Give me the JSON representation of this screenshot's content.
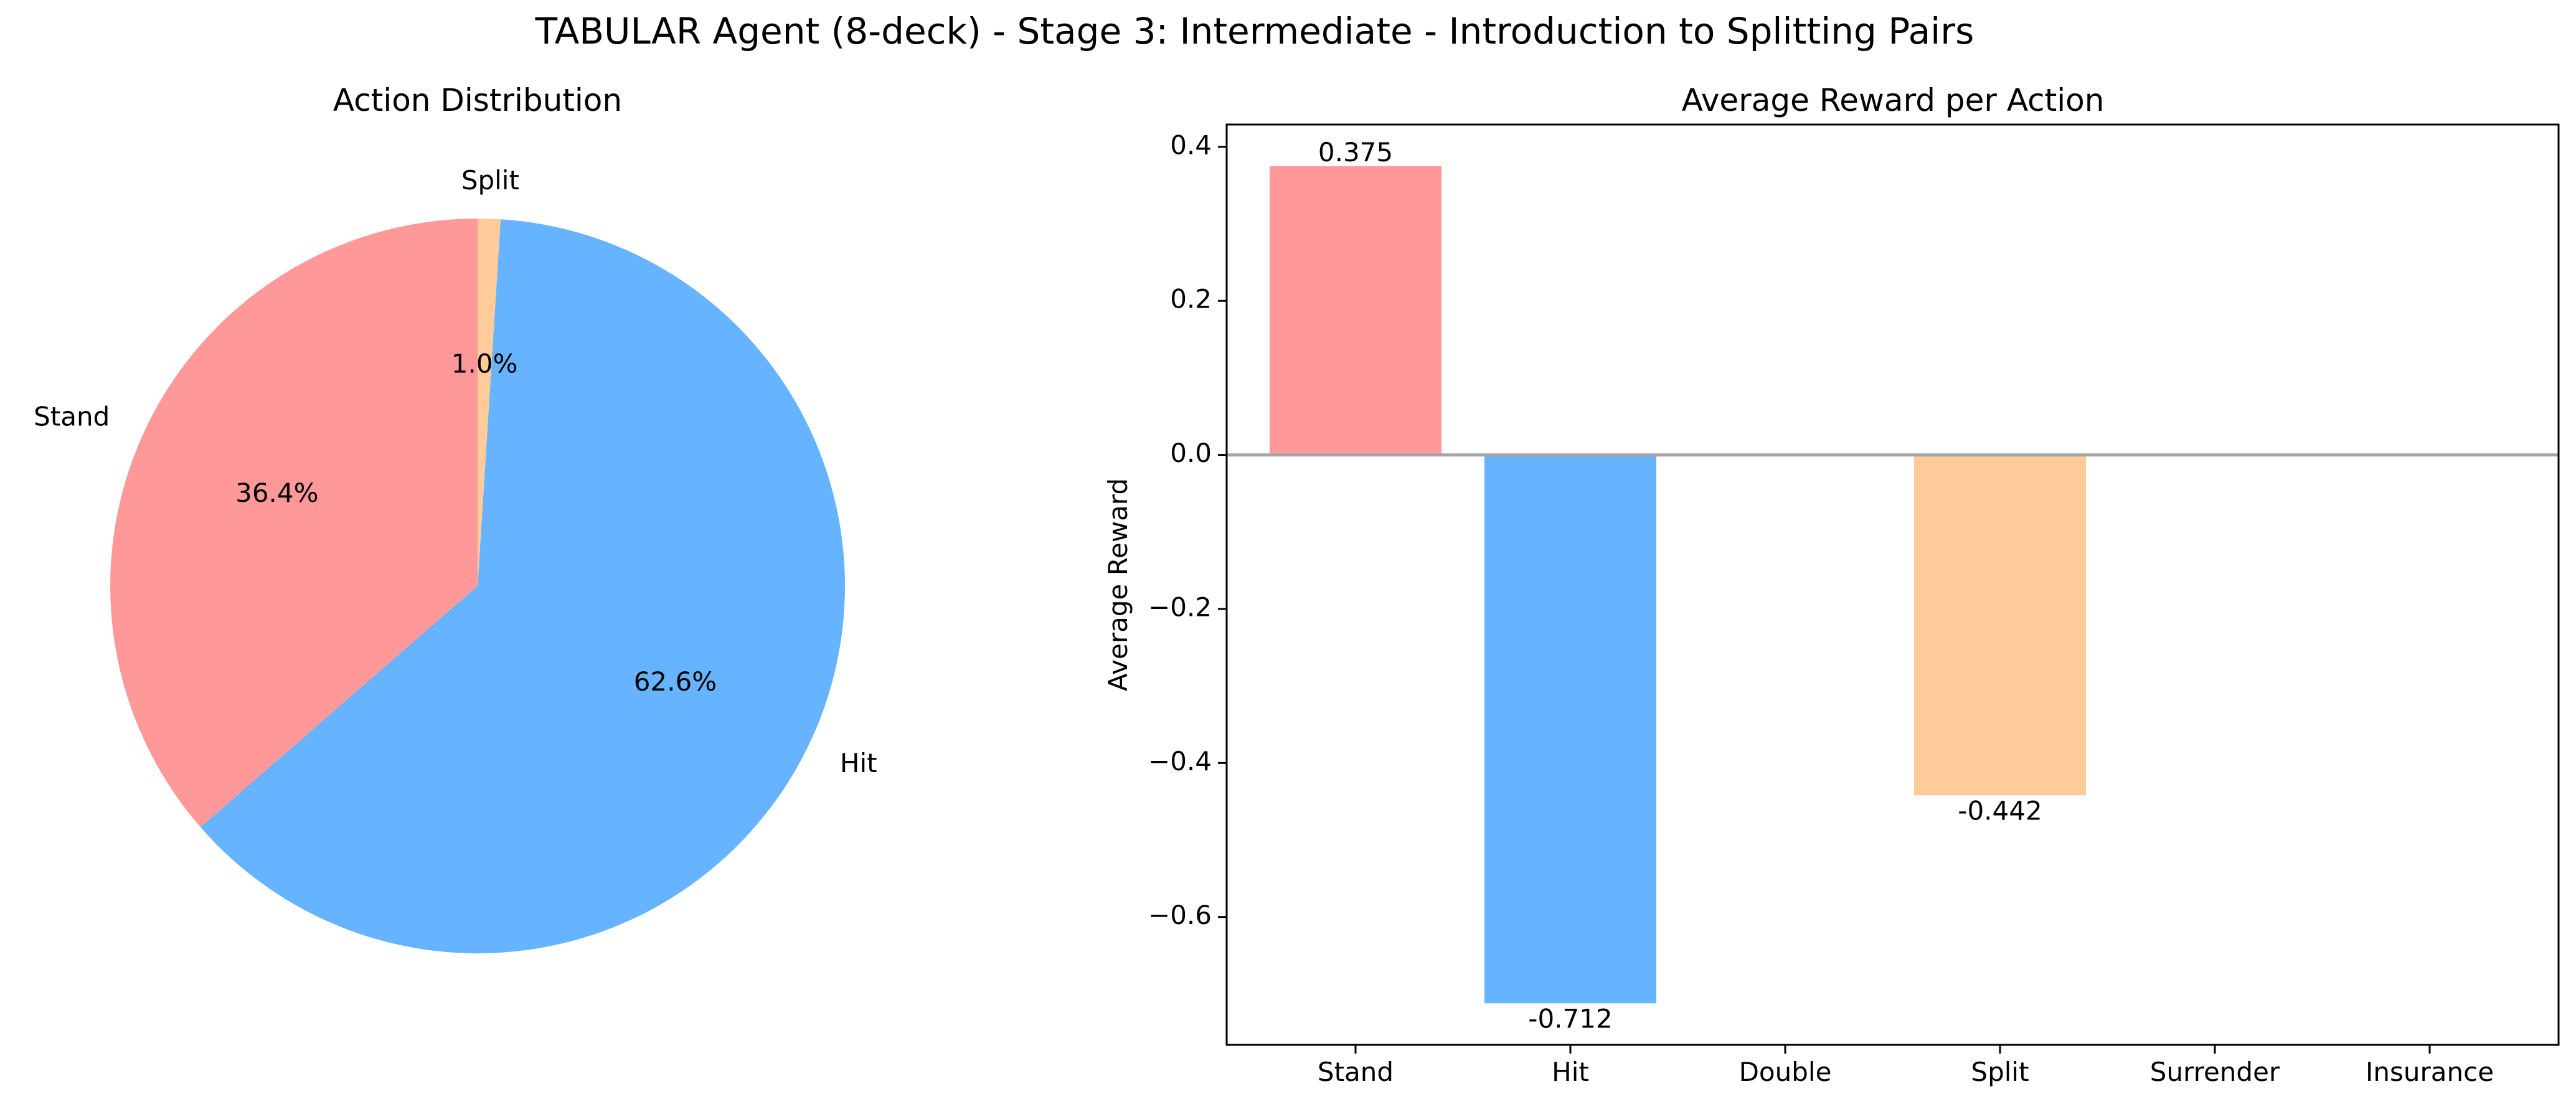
{
  "figure": {
    "suptitle": "TABULAR Agent (8-deck) - Stage 3: Intermediate - Introduction to Splitting Pairs"
  },
  "colors": {
    "stand": "#ff9999",
    "hit": "#66b3ff",
    "split": "#ffcc99",
    "zero_line": "#a6a6a6"
  },
  "chart_data": [
    {
      "type": "pie",
      "title": "Action Distribution",
      "labels": [
        "Stand",
        "Hit",
        "Split"
      ],
      "values": [
        36.4,
        62.6,
        1.0
      ],
      "autopct_labels": [
        "36.4%",
        "62.6%",
        "1.0%"
      ],
      "colors": [
        "#ff9999",
        "#66b3ff",
        "#ffcc99"
      ],
      "start_angle": 90,
      "direction": "counterclockwise"
    },
    {
      "type": "bar",
      "title": "Average Reward per Action",
      "xlabel": "",
      "ylabel": "Average Reward",
      "categories": [
        "Stand",
        "Hit",
        "Double",
        "Split",
        "Surrender",
        "Insurance"
      ],
      "values": [
        0.375,
        -0.712,
        null,
        -0.442,
        null,
        null
      ],
      "value_labels": [
        "0.375",
        "-0.712",
        "",
        "-0.442",
        "",
        ""
      ],
      "colors": [
        "#ff9999",
        "#66b3ff",
        null,
        "#ffcc99",
        null,
        null
      ],
      "ylim": [
        -0.766,
        0.429
      ],
      "yticks": [
        0.4,
        0.2,
        0.0,
        -0.2,
        -0.4,
        -0.6
      ],
      "ytick_labels": [
        "0.4",
        "0.2",
        "0.0",
        "−0.2",
        "−0.4",
        "−0.6"
      ],
      "zero_line": true,
      "grid": false
    }
  ]
}
